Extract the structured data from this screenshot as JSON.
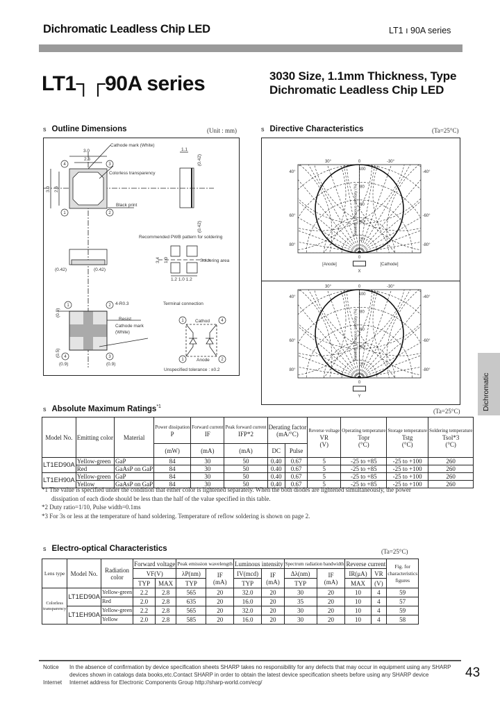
{
  "header": {
    "title": "Dichromatic Leadless Chip LED",
    "series": "LT1 ı 90A series"
  },
  "product": {
    "title": "LT1┐┌90A series",
    "subtitle": "3030 Size, 1.1mm Thickness, Type Dichromatic Leadless Chip LED"
  },
  "outline": {
    "heading": "Outline Dimensions",
    "unit": "(Unit : mm)",
    "labels": {
      "w30": "3.0",
      "w26": "2.6",
      "cathode_mark": "Cathode mark (White)",
      "colorless": "Colorless transparency",
      "black_print": "Black print",
      "h30": "3.0",
      "h26": "2.6",
      "t11": "1.1",
      "p042a": "(0.42)",
      "p042b": "(0.42)",
      "p042c": "(0.42)",
      "p042d": "(0.42)",
      "pwb": "Recommended PWB pattern for soldering",
      "soldering_area": "Soldering area",
      "pad_dims": "1.2  1.0  1.2",
      "d34": "3.4",
      "d10": "1.0",
      "r03": "4-R0.3",
      "resist": "Resist",
      "cathode_mark2": "Cathode mark",
      "white": "(White)",
      "terminal": "Terminal connection",
      "cathode": "Cathod",
      "anode": "Anode",
      "tolerance": "Unspecified tolerance : ±0.2",
      "p09": "(0.9)",
      "p05": "(0.5)",
      "p09b": "(0.9)",
      "p03": "(0.9)",
      "n1": "1",
      "n2": "2",
      "n3": "3",
      "n4": "4"
    }
  },
  "directive": {
    "heading": "Directive Characteristics",
    "condition": "(Ta=25°C)",
    "angles": {
      "t30": "30°",
      "t0": "0",
      "tm30": "-30°",
      "l1": "40°",
      "r1": "-40°",
      "l2": "60°",
      "r2": "-60°",
      "l3": "80°",
      "r3": "-80°"
    },
    "radial": [
      "100",
      "80",
      "60",
      "40",
      "20"
    ],
    "ylabel": "Relative luminous intensity (%)",
    "bottom0": "0",
    "anode": "[Anode]",
    "cathode": "[Cathode]",
    "x_axis": "X",
    "y_axis": "Y"
  },
  "abs_max": {
    "heading": "Absolute Maximum Ratings",
    "sup": "*1",
    "condition": "(Ta=25°C)",
    "headers": {
      "model": "Model No.",
      "color": "Emitting color",
      "material": "Material",
      "p": [
        "Power dissipation",
        "P",
        "(mW)"
      ],
      "if": [
        "Forward current",
        "IF",
        "(mA)"
      ],
      "ifp": [
        "Peak forward current",
        "IFP*2",
        "(mA)"
      ],
      "derating": [
        "Derating factor",
        "(mA/°C)"
      ],
      "dc": "DC",
      "pulse": "Pulse",
      "vr": [
        "Reverse voltage",
        "VR",
        "(V)"
      ],
      "topr": [
        "Operating temperature",
        "Topr",
        "(°C)"
      ],
      "tstg": [
        "Storage temperature",
        "Tstg",
        "(°C)"
      ],
      "tsol": [
        "Soldering temperature",
        "Tsol*3",
        "(°C)"
      ]
    },
    "rows": [
      {
        "model": "LT1ED90A",
        "color": "Yellow-green",
        "material": "GaP",
        "p": "84",
        "if": "30",
        "ifp": "50",
        "dc": "0.40",
        "pulse": "0.67",
        "vr": "5",
        "topr": "-25 to +85",
        "tstg": "-25 to +100",
        "tsol": "260"
      },
      {
        "model": "",
        "color": "Red",
        "material": "GaAsP on GaP",
        "p": "84",
        "if": "30",
        "ifp": "50",
        "dc": "0.40",
        "pulse": "0.67",
        "vr": "5",
        "topr": "-25 to +85",
        "tstg": "-25 to +100",
        "tsol": "260"
      },
      {
        "model": "LT1EH90A",
        "color": "Yellow-green",
        "material": "GaP",
        "p": "84",
        "if": "30",
        "ifp": "50",
        "dc": "0.40",
        "pulse": "0.67",
        "vr": "5",
        "topr": "-25 to +85",
        "tstg": "-25 to +100",
        "tsol": "260"
      },
      {
        "model": "",
        "color": "Yellow",
        "material": "GaAsP on GaP",
        "p": "84",
        "if": "30",
        "ifp": "50",
        "dc": "0.40",
        "pulse": "0.67",
        "vr": "5",
        "topr": "-25 to +85",
        "tstg": "-25 to +100",
        "tsol": "260"
      }
    ],
    "notes": [
      "*1  The value is specified under the condition that either color is lightened separately.  When the both diodes are lightened simultaneously, the power dissipation of each diode should be less than the half of the value specified in this table.",
      "*2  Duty ratio=1/10, Pulse width=0.1ms",
      "*3  For 3s or less at the temperature of hand soldering. Temperature of reflow soldering is shown on page 2."
    ]
  },
  "electro": {
    "heading": "Electro-optical Characteristics",
    "condition": "(Ta=25°C)",
    "headers": {
      "lens": "Lens type",
      "model": "Model No.",
      "radiation": "Radiation color",
      "vf": "Forward voltage",
      "vf_unit": "VF(V)",
      "typ": "TYP",
      "max": "MAX",
      "peak": "Peak emission wavelength",
      "lp": "λP(nm)",
      "if": "IF",
      "ma": "(mA)",
      "lum": "Luminous intensity",
      "iv": "IV(mcd)",
      "spec": "Spectrum radiation bandwidth",
      "dl": "Δλ(nm)",
      "rev": "Reverse current",
      "ir": "IR(μA)",
      "vr": "VR",
      "v": "(V)",
      "fig": [
        "Fig. for",
        "characteristics",
        "figures"
      ]
    },
    "lens": "Colorless transparency",
    "rows": [
      {
        "model": "LT1ED90A",
        "color": "Yellow-green",
        "vf_typ": "2.2",
        "vf_max": "2.8",
        "lp": "565",
        "if1": "20",
        "iv": "32.0",
        "if2": "20",
        "dl": "30",
        "if3": "20",
        "ir": "10",
        "vr": "4",
        "fig": "59"
      },
      {
        "model": "",
        "color": "Red",
        "vf_typ": "2.0",
        "vf_max": "2.8",
        "lp": "635",
        "if1": "20",
        "iv": "16.0",
        "if2": "20",
        "dl": "35",
        "if3": "20",
        "ir": "10",
        "vr": "4",
        "fig": "57"
      },
      {
        "model": "LT1EH90A",
        "color": "Yellow-green",
        "vf_typ": "2.2",
        "vf_max": "2.8",
        "lp": "565",
        "if1": "20",
        "iv": "32.0",
        "if2": "20",
        "dl": "30",
        "if3": "20",
        "ir": "10",
        "vr": "4",
        "fig": "59"
      },
      {
        "model": "",
        "color": "Yellow",
        "vf_typ": "2.0",
        "vf_max": "2.8",
        "lp": "585",
        "if1": "20",
        "iv": "16.0",
        "if2": "20",
        "dl": "30",
        "if3": "20",
        "ir": "10",
        "vr": "4",
        "fig": "58"
      }
    ]
  },
  "side_tab": "Dichromatic",
  "footer": {
    "notice_label": "Notice",
    "notice": "In the absence of confirmation by device specification sheets SHARP takes no responsibility for any defects that may occur in equipment using any SHARP devices shown in catalogs data books,etc.Contact SHARP in order to obtain the latest device specification sheets before using any SHARP device",
    "internet_label": "Internet",
    "internet": "Internet address for Electronic Components Group  http://sharp-world.com/ecg/",
    "page": "43"
  }
}
